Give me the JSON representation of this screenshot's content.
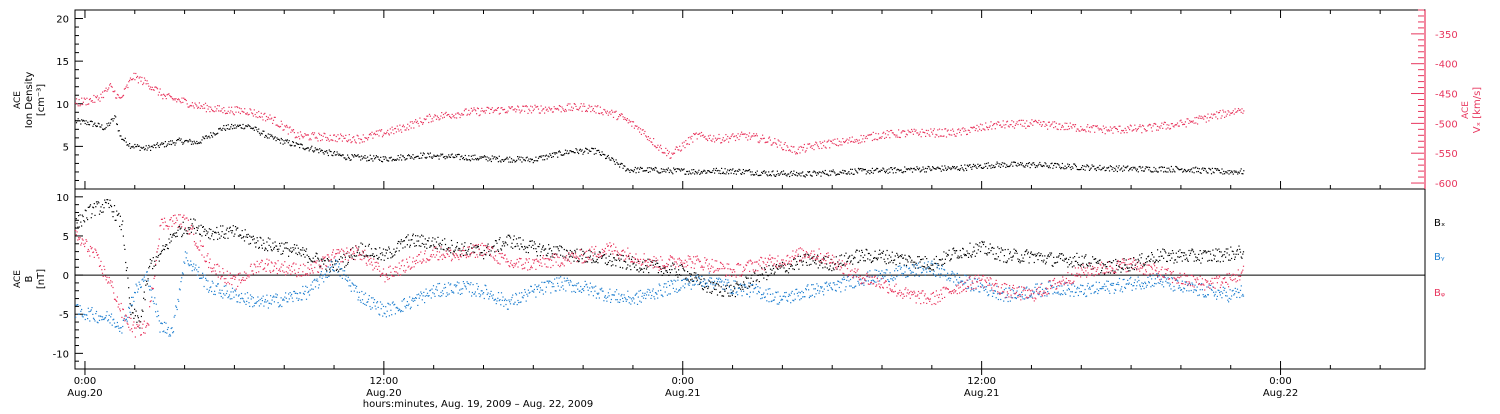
{
  "colors": {
    "black": "#000000",
    "pink": "#e8365e",
    "blue": "#1f7fd0"
  },
  "x_axis": {
    "tick_labels": [
      {
        "time": "0:00",
        "date": "Aug.20",
        "hour": 24
      },
      {
        "time": "12:00",
        "date": "Aug.20",
        "hour": 36
      },
      {
        "time": "0:00",
        "date": "Aug.21",
        "hour": 48
      },
      {
        "time": "12:00",
        "date": "Aug.21",
        "hour": 60
      },
      {
        "time": "0:00",
        "date": "Aug.22",
        "hour": 72
      }
    ],
    "title": "hours:minutes, Aug. 19, 2009 – Aug. 22, 2009",
    "range_hours": [
      23.6,
      77.8
    ]
  },
  "chart_data": [
    {
      "type": "scatter",
      "panel": "top",
      "ylabel_left": [
        "ACE",
        "Ion Density",
        "[cm⁻³]"
      ],
      "ylabel_right": [
        "ACE",
        "Vₓ [km/s]"
      ],
      "ylim_left": [
        0,
        21
      ],
      "ylim_right": [
        -610,
        -310
      ],
      "yticks_left": [
        "5",
        "10",
        "15",
        "20"
      ],
      "yticks_right": [
        "-350",
        "-400",
        "-450",
        "-500",
        "-550",
        "-600"
      ],
      "series": [
        {
          "axis": "left",
          "color_key": "black",
          "x": [
            23.6,
            24.2,
            24.8,
            25.2,
            25.4,
            25.8,
            26.4,
            27,
            27.8,
            28.5,
            29.5,
            30.5,
            31.5,
            32.5,
            33.5,
            34.5,
            36,
            37.5,
            39,
            40.5,
            42,
            43.5,
            44.5,
            45.8,
            46.5,
            47.5,
            48.5,
            49.5,
            50.5,
            51.5,
            53,
            54.5,
            56,
            57.5,
            59,
            60.5,
            62,
            63.5,
            65,
            66.5,
            68,
            69.5,
            70.5
          ],
          "y": [
            8,
            7.8,
            7.2,
            8.5,
            6.2,
            5.2,
            4.8,
            5.2,
            5.7,
            5.5,
            7.2,
            7.5,
            6,
            5.2,
            4.5,
            3.8,
            3.6,
            4,
            3.8,
            3.6,
            3.5,
            4.5,
            4.5,
            2.3,
            2.3,
            2.2,
            2.1,
            2.2,
            2.1,
            1.9,
            1.8,
            2.1,
            2.2,
            2.4,
            2.5,
            2.9,
            2.9,
            2.7,
            2.5,
            2.4,
            2.4,
            2.1,
            2.1
          ]
        },
        {
          "axis": "right",
          "color_key": "pink",
          "x": [
            23.6,
            24.5,
            25,
            25.4,
            25.9,
            26.5,
            27.2,
            28,
            28.5,
            29.5,
            30.5,
            31.5,
            32.5,
            33.5,
            35,
            36.5,
            38,
            39.5,
            41,
            42.5,
            44,
            44.8,
            45.5,
            46.3,
            47,
            47.5,
            48.5,
            49.5,
            50.5,
            51.5,
            52.5,
            53.5,
            54.5,
            56,
            57.5,
            59,
            60.5,
            62,
            63.5,
            65,
            66.5,
            68,
            69.5,
            70.5
          ],
          "y": [
            -465,
            -458,
            -438,
            -460,
            -420,
            -432,
            -455,
            -463,
            -470,
            -477,
            -478,
            -492,
            -520,
            -522,
            -525,
            -510,
            -488,
            -480,
            -476,
            -475,
            -472,
            -478,
            -488,
            -510,
            -538,
            -552,
            -520,
            -525,
            -520,
            -528,
            -545,
            -535,
            -530,
            -518,
            -515,
            -515,
            -502,
            -500,
            -505,
            -510,
            -508,
            -500,
            -485,
            -475
          ]
        }
      ]
    },
    {
      "type": "scatter",
      "panel": "bottom",
      "ylabel_left": [
        "ACE",
        "B",
        "[nT]"
      ],
      "ylim": [
        -12,
        11
      ],
      "yticks": [
        "10",
        "5",
        "0",
        "-5",
        "-10"
      ],
      "zero_line": true,
      "legend_placement": "right",
      "series": [
        {
          "name": "Bₓ",
          "color_key": "black",
          "x": [
            23.6,
            24.3,
            25,
            25.5,
            25.8,
            26.2,
            26.6,
            27,
            27.6,
            28.3,
            29,
            30,
            31,
            32,
            33,
            34,
            35,
            36,
            37,
            38,
            39,
            40,
            41,
            42,
            43,
            44,
            45,
            46,
            47,
            48,
            49,
            50,
            51,
            52,
            53,
            54,
            55,
            56,
            57,
            58,
            59,
            60,
            61,
            62,
            63,
            64,
            65,
            66,
            67,
            68,
            69,
            70,
            70.5
          ],
          "y": [
            6.5,
            8.5,
            9,
            6.2,
            -4.5,
            -6,
            1.5,
            2.5,
            5.5,
            6.5,
            5.5,
            5.5,
            4.2,
            3.5,
            2.5,
            1,
            3.5,
            2.5,
            4.5,
            4.2,
            3.5,
            3,
            4.5,
            3.5,
            3,
            2.5,
            2,
            1.5,
            1,
            0.5,
            -1.5,
            -2,
            0,
            1,
            2,
            1.5,
            2.5,
            2.5,
            2,
            1.5,
            3,
            3.5,
            2.5,
            2.5,
            2,
            2,
            1,
            1.5,
            2.5,
            2.5,
            2.5,
            2.8,
            3
          ]
        },
        {
          "name": "Bᵧ",
          "color_key": "blue",
          "x": [
            23.6,
            24.3,
            25,
            25.5,
            26,
            26.5,
            27,
            27.5,
            28,
            29,
            30,
            31,
            32,
            33,
            34,
            35,
            36,
            37,
            38,
            39,
            40,
            41,
            42,
            43,
            44,
            45,
            46,
            47,
            48,
            49,
            50,
            51,
            52,
            53,
            54,
            55,
            56,
            57,
            58,
            59,
            60,
            61,
            62,
            63,
            64,
            65,
            66,
            67,
            68,
            69,
            70,
            70.5
          ],
          "y": [
            -4.5,
            -5,
            -5.5,
            -6.5,
            -2,
            0,
            -6.5,
            -7,
            2.5,
            -1.5,
            -2.5,
            -3.5,
            -3,
            -2,
            1.5,
            -2.5,
            -4.5,
            -3.5,
            -2,
            -1.5,
            -2,
            -3.5,
            -2,
            -1,
            -1.5,
            -2.5,
            -3,
            -2,
            -1,
            -0.5,
            -1.5,
            -2,
            -3,
            -2,
            -1.5,
            -0.5,
            0,
            0.5,
            1,
            -0.5,
            -1.5,
            -2.5,
            -2,
            -1.5,
            -2,
            -1.5,
            -1,
            -0.5,
            -1.5,
            -2,
            -2.5,
            -2
          ]
        },
        {
          "name": "Bᵩ",
          "color_key": "pink",
          "x": [
            23.6,
            24.3,
            25,
            25.5,
            26,
            26.5,
            27,
            27.5,
            28,
            29,
            30,
            31,
            32,
            33,
            34,
            35,
            36,
            37,
            38,
            39,
            40,
            41,
            42,
            43,
            44,
            45,
            46,
            47,
            48,
            49,
            50,
            51,
            52,
            53,
            54,
            55,
            56,
            57,
            58,
            59,
            60,
            61,
            62,
            63,
            64,
            65,
            66,
            67,
            68,
            69,
            70,
            70.5
          ],
          "y": [
            5,
            3,
            -1,
            -5,
            -7,
            -6.5,
            6.5,
            7,
            7,
            1.5,
            -1,
            1.5,
            1,
            0.5,
            2.5,
            3,
            0,
            1.5,
            3,
            2.5,
            3.5,
            1.5,
            1.5,
            2,
            2.5,
            3.5,
            2.5,
            1.5,
            2,
            1.5,
            0.5,
            1.5,
            2,
            3,
            2,
            0,
            -1,
            -2.5,
            -3,
            -1.5,
            -0.5,
            -2,
            -2.5,
            -1,
            0.5,
            1,
            1.5,
            0.5,
            -0.5,
            -1,
            -0.5,
            0.5
          ]
        }
      ]
    }
  ]
}
